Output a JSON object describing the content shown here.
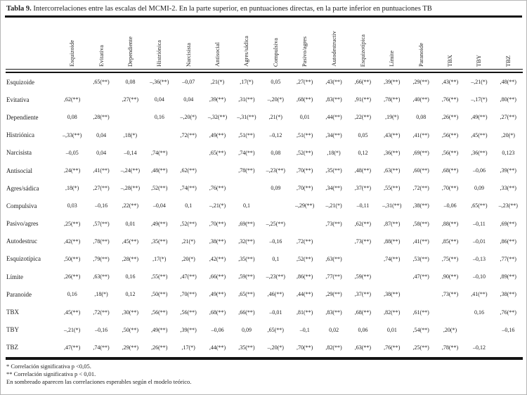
{
  "title": {
    "prefix": "Tabla 9.",
    "text": " Intercorrelaciones entre las escalas del MCMI-2. En la parte superior, en puntuaciones directas, en la parte inferior en puntuaciones TB"
  },
  "chart_data": {
    "type": "table",
    "columns": [
      "Esquizoide",
      "Evitativa",
      "Dependiente",
      "Histriónica",
      "Narcisista",
      "Antisocial",
      "Agres/sádica",
      "Compulsiva",
      "Pasivo/agres",
      "Autodestructiv",
      "Esquizotípica",
      "Límite",
      "Paranoide",
      "TBX",
      "TBY",
      "TBZ"
    ],
    "rows": [
      {
        "label": "Esquizoide",
        "values": [
          "",
          ",65(**)",
          "0,08",
          "–,36(**)",
          "–0,07",
          ",21(*)",
          ",17(*)",
          "0,05",
          ",27(**)",
          ",43(**)",
          ",66(**)",
          ",39(**)",
          ",29(**)",
          ",43(**)",
          "–,21(*)",
          ",48(**)"
        ]
      },
      {
        "label": "Evitativa",
        "values": [
          ",62(**)",
          "",
          ",27(**)",
          "0,04",
          "0,04",
          ",39(**)",
          ",31(**)",
          "–,20(*)",
          ",68(**)",
          ",83(**)",
          ",91(**)",
          ",78(**)",
          ",40(**)",
          ",76(**)",
          "–,17(*)",
          ",80(**)"
        ]
      },
      {
        "label": "Dependiente",
        "values": [
          "0,08",
          ",28(**)",
          "",
          "0,16",
          "–,20(*)",
          "–,32(**)",
          "–,31(**)",
          ",21(*)",
          "0,01",
          ",44(**)",
          ",22(**)",
          ",19(*)",
          "0,08",
          ",26(**)",
          ",49(**)",
          ",27(**)"
        ]
      },
      {
        "label": "Histriónica",
        "values": [
          "–,33(**)",
          "0,04",
          ",18(*)",
          "",
          ",72(**)",
          ",49(**)",
          ",51(**)",
          "–0,12",
          ",51(**)",
          ",34(**)",
          "0,05",
          ",43(**)",
          ",41(**)",
          ",56(**)",
          ",45(**)",
          ",20(*)"
        ]
      },
      {
        "label": "Narcisista",
        "values": [
          "–0,05",
          "0,04",
          "–0,14",
          ",74(**)",
          "",
          ",65(**)",
          ",74(**)",
          "0,08",
          ",52(**)",
          ",18(*)",
          "0,12",
          ",36(**)",
          ",69(**)",
          ",56(**)",
          ",36(**)",
          "0,123"
        ]
      },
      {
        "label": "Antisocial",
        "values": [
          ",24(**)",
          ",41(**)",
          "–,24(**)",
          ",48(**)",
          ",62(**)",
          "",
          ",78(**)",
          "–,23(**)",
          ",70(**)",
          ",35(**)",
          ",48(**)",
          ",63(**)",
          ",60(**)",
          ",68(**)",
          "–0,06",
          ",39(**)"
        ]
      },
      {
        "label": "Agres/sádica",
        "values": [
          ",18(*)",
          ",27(**)",
          "–,28(**)",
          ",52(**)",
          ",74(**)",
          ",76(**)",
          "",
          "0,09",
          ",70(**)",
          ",34(**)",
          ",37(**)",
          ",55(**)",
          ",72(**)",
          ",70(**)",
          "0,09",
          ",33(**)"
        ]
      },
      {
        "label": "Compulsiva",
        "values": [
          "0,03",
          "–0,16",
          ",22(**)",
          "–0,04",
          "0,1",
          "–,21(*)",
          "0,1",
          "",
          "–,29(**)",
          "–,21(*)",
          "–0,11",
          "–,31(**)",
          ",38(**)",
          "–0,06",
          ",65(**)",
          "–,23(**)"
        ]
      },
      {
        "label": "Pasivo/agres",
        "values": [
          ",25(**)",
          ",57(**)",
          "0,01",
          ",49(**)",
          ",52(**)",
          ",70(**)",
          ",69(**)",
          "–,25(**)",
          "",
          ",73(**)",
          ",62(**)",
          ",87(**)",
          ",58(**)",
          ",88(**)",
          "–0,11",
          ",69(**)"
        ]
      },
      {
        "label": "Autodestruc",
        "values": [
          ",42(**)",
          ",78(**)",
          ",45(**)",
          ",35(**)",
          ",21(*)",
          ",38(**)",
          ",32(**)",
          "–0,16",
          ",72(**)",
          "",
          ",73(**)",
          ",88(**)",
          ",41(**)",
          ",85(**)",
          "–0,01",
          ",86(**)"
        ]
      },
      {
        "label": "Esquizotípica",
        "values": [
          ",50(**)",
          ",79(**)",
          ",28(**)",
          ",17(*)",
          ",20(*)",
          ",42(**)",
          ",35(**)",
          "0,1",
          ",52(**)",
          ",63(**)",
          "",
          ",74(**)",
          ",53(**)",
          ",75(**)",
          "–0,13",
          ",77(**)"
        ]
      },
      {
        "label": "Límite",
        "values": [
          ",26(**)",
          ",63(**)",
          "0,16",
          ",55(**)",
          ",47(**)",
          ",66(**)",
          ",59(**)",
          "–,23(**)",
          ",86(**)",
          ",77(**)",
          ",59(**)",
          "",
          ",47(**)",
          ",90(**)",
          "–0,10",
          ",89(**)"
        ]
      },
      {
        "label": "Paranoide",
        "values": [
          "0,16",
          ",18(*)",
          "0,12",
          ",50(**)",
          ",70(**)",
          ",49(**)",
          ",65(**)",
          ",46(**)",
          ",44(**)",
          ",29(**)",
          ",37(**)",
          ",38(**)",
          "",
          ",73(**)",
          ",41(**)",
          ",38(**)"
        ]
      },
      {
        "label": "TBX",
        "values": [
          ",45(**)",
          ",72(**)",
          ",30(**)",
          ",56(**)",
          ",56(**)",
          ",68(**)",
          ",66(**)",
          "–0,01",
          ",81(**)",
          ",83(**)",
          ",68(**)",
          ",82(**)",
          ",61(**)",
          "",
          "0,16",
          ",76(**)"
        ]
      },
      {
        "label": "TBY",
        "values": [
          "–,21(*)",
          "–0,16",
          ",50(**)",
          ",49(**)",
          ",39(**)",
          "–0,06",
          "0,09",
          ",65(**)",
          "–0,1",
          "0,02",
          "0,06",
          "0,01",
          ",54(**)",
          ",20(*)",
          "",
          "–0,16"
        ]
      },
      {
        "label": "TBZ",
        "values": [
          ",47(**)",
          ",74(**)",
          ",29(**)",
          ",26(**)",
          ",17(*)",
          ",44(**)",
          ",35(**)",
          "–,20(*)",
          ",70(**)",
          ",82(**)",
          ",63(**)",
          ",76(**)",
          ",25(**)",
          ",78(**)",
          "–0,12",
          ""
        ]
      }
    ]
  },
  "footnotes": [
    "* Correlación significativa p <0,05.",
    "** Correlación significativa p < 0,01.",
    "En sombreado aparecen las correlaciones esperables según el modelo teórico."
  ]
}
